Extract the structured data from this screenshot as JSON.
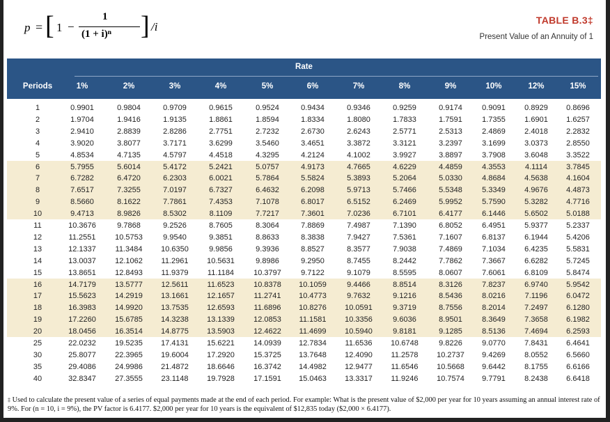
{
  "formula": {
    "p": "p",
    "equals": "=",
    "one": "1",
    "minus": "−",
    "numerator": "1",
    "denominator": "(1 + i)ⁿ",
    "divisor": "/i",
    "bracket_left": "[",
    "bracket_right": "]"
  },
  "title": "TABLE B.3‡",
  "subtitle": "Present Value of an Annuity of 1",
  "header": {
    "rate_label": "Rate",
    "periods_label": "Periods",
    "rates": [
      "1%",
      "2%",
      "3%",
      "4%",
      "5%",
      "6%",
      "7%",
      "8%",
      "9%",
      "10%",
      "12%",
      "15%"
    ]
  },
  "rows": [
    {
      "period": "1",
      "values": [
        "0.9901",
        "0.9804",
        "0.9709",
        "0.9615",
        "0.9524",
        "0.9434",
        "0.9346",
        "0.9259",
        "0.9174",
        "0.9091",
        "0.8929",
        "0.8696"
      ]
    },
    {
      "period": "2",
      "values": [
        "1.9704",
        "1.9416",
        "1.9135",
        "1.8861",
        "1.8594",
        "1.8334",
        "1.8080",
        "1.7833",
        "1.7591",
        "1.7355",
        "1.6901",
        "1.6257"
      ]
    },
    {
      "period": "3",
      "values": [
        "2.9410",
        "2.8839",
        "2.8286",
        "2.7751",
        "2.7232",
        "2.6730",
        "2.6243",
        "2.5771",
        "2.5313",
        "2.4869",
        "2.4018",
        "2.2832"
      ]
    },
    {
      "period": "4",
      "values": [
        "3.9020",
        "3.8077",
        "3.7171",
        "3.6299",
        "3.5460",
        "3.4651",
        "3.3872",
        "3.3121",
        "3.2397",
        "3.1699",
        "3.0373",
        "2.8550"
      ]
    },
    {
      "period": "5",
      "values": [
        "4.8534",
        "4.7135",
        "4.5797",
        "4.4518",
        "4.3295",
        "4.2124",
        "4.1002",
        "3.9927",
        "3.8897",
        "3.7908",
        "3.6048",
        "3.3522"
      ]
    },
    {
      "period": "6",
      "values": [
        "5.7955",
        "5.6014",
        "5.4172",
        "5.2421",
        "5.0757",
        "4.9173",
        "4.7665",
        "4.6229",
        "4.4859",
        "4.3553",
        "4.1114",
        "3.7845"
      ]
    },
    {
      "period": "7",
      "values": [
        "6.7282",
        "6.4720",
        "6.2303",
        "6.0021",
        "5.7864",
        "5.5824",
        "5.3893",
        "5.2064",
        "5.0330",
        "4.8684",
        "4.5638",
        "4.1604"
      ]
    },
    {
      "period": "8",
      "values": [
        "7.6517",
        "7.3255",
        "7.0197",
        "6.7327",
        "6.4632",
        "6.2098",
        "5.9713",
        "5.7466",
        "5.5348",
        "5.3349",
        "4.9676",
        "4.4873"
      ]
    },
    {
      "period": "9",
      "values": [
        "8.5660",
        "8.1622",
        "7.7861",
        "7.4353",
        "7.1078",
        "6.8017",
        "6.5152",
        "6.2469",
        "5.9952",
        "5.7590",
        "5.3282",
        "4.7716"
      ]
    },
    {
      "period": "10",
      "values": [
        "9.4713",
        "8.9826",
        "8.5302",
        "8.1109",
        "7.7217",
        "7.3601",
        "7.0236",
        "6.7101",
        "6.4177",
        "6.1446",
        "5.6502",
        "5.0188"
      ]
    },
    {
      "period": "11",
      "values": [
        "10.3676",
        "9.7868",
        "9.2526",
        "8.7605",
        "8.3064",
        "7.8869",
        "7.4987",
        "7.1390",
        "6.8052",
        "6.4951",
        "5.9377",
        "5.2337"
      ]
    },
    {
      "period": "12",
      "values": [
        "11.2551",
        "10.5753",
        "9.9540",
        "9.3851",
        "8.8633",
        "8.3838",
        "7.9427",
        "7.5361",
        "7.1607",
        "6.8137",
        "6.1944",
        "5.4206"
      ]
    },
    {
      "period": "13",
      "values": [
        "12.1337",
        "11.3484",
        "10.6350",
        "9.9856",
        "9.3936",
        "8.8527",
        "8.3577",
        "7.9038",
        "7.4869",
        "7.1034",
        "6.4235",
        "5.5831"
      ]
    },
    {
      "period": "14",
      "values": [
        "13.0037",
        "12.1062",
        "11.2961",
        "10.5631",
        "9.8986",
        "9.2950",
        "8.7455",
        "8.2442",
        "7.7862",
        "7.3667",
        "6.6282",
        "5.7245"
      ]
    },
    {
      "period": "15",
      "values": [
        "13.8651",
        "12.8493",
        "11.9379",
        "11.1184",
        "10.3797",
        "9.7122",
        "9.1079",
        "8.5595",
        "8.0607",
        "7.6061",
        "6.8109",
        "5.8474"
      ]
    },
    {
      "period": "16",
      "values": [
        "14.7179",
        "13.5777",
        "12.5611",
        "11.6523",
        "10.8378",
        "10.1059",
        "9.4466",
        "8.8514",
        "8.3126",
        "7.8237",
        "6.9740",
        "5.9542"
      ]
    },
    {
      "period": "17",
      "values": [
        "15.5623",
        "14.2919",
        "13.1661",
        "12.1657",
        "11.2741",
        "10.4773",
        "9.7632",
        "9.1216",
        "8.5436",
        "8.0216",
        "7.1196",
        "6.0472"
      ]
    },
    {
      "period": "18",
      "values": [
        "16.3983",
        "14.9920",
        "13.7535",
        "12.6593",
        "11.6896",
        "10.8276",
        "10.0591",
        "9.3719",
        "8.7556",
        "8.2014",
        "7.2497",
        "6.1280"
      ]
    },
    {
      "period": "19",
      "values": [
        "17.2260",
        "15.6785",
        "14.3238",
        "13.1339",
        "12.0853",
        "11.1581",
        "10.3356",
        "9.6036",
        "8.9501",
        "8.3649",
        "7.3658",
        "6.1982"
      ]
    },
    {
      "period": "20",
      "values": [
        "18.0456",
        "16.3514",
        "14.8775",
        "13.5903",
        "12.4622",
        "11.4699",
        "10.5940",
        "9.8181",
        "9.1285",
        "8.5136",
        "7.4694",
        "6.2593"
      ]
    },
    {
      "period": "25",
      "values": [
        "22.0232",
        "19.5235",
        "17.4131",
        "15.6221",
        "14.0939",
        "12.7834",
        "11.6536",
        "10.6748",
        "9.8226",
        "9.0770",
        "7.8431",
        "6.4641"
      ]
    },
    {
      "period": "30",
      "values": [
        "25.8077",
        "22.3965",
        "19.6004",
        "17.2920",
        "15.3725",
        "13.7648",
        "12.4090",
        "11.2578",
        "10.2737",
        "9.4269",
        "8.0552",
        "6.5660"
      ]
    },
    {
      "period": "35",
      "values": [
        "29.4086",
        "24.9986",
        "21.4872",
        "18.6646",
        "16.3742",
        "14.4982",
        "12.9477",
        "11.6546",
        "10.5668",
        "9.6442",
        "8.1755",
        "6.6166"
      ]
    },
    {
      "period": "40",
      "values": [
        "32.8347",
        "27.3555",
        "23.1148",
        "19.7928",
        "17.1591",
        "15.0463",
        "13.3317",
        "11.9246",
        "10.7574",
        "9.7791",
        "8.2438",
        "6.6418"
      ]
    }
  ],
  "footnote": {
    "mark": "‡",
    "text": "Used to calculate the present value of a series of equal payments made at the end of each period. For example: What is the present value of $2,000 per year for 10 years assuming an annual interest rate of 9%. For (n = 10, i = 9%), the PV factor is 6.4177. $2,000 per year for 10 years is the equivalent of $12,835 today ($2,000 × 6.4177)."
  },
  "colors": {
    "header_bg": "#2b5586",
    "band_bg": "#f5ecd2",
    "title_color": "#c0392b"
  }
}
